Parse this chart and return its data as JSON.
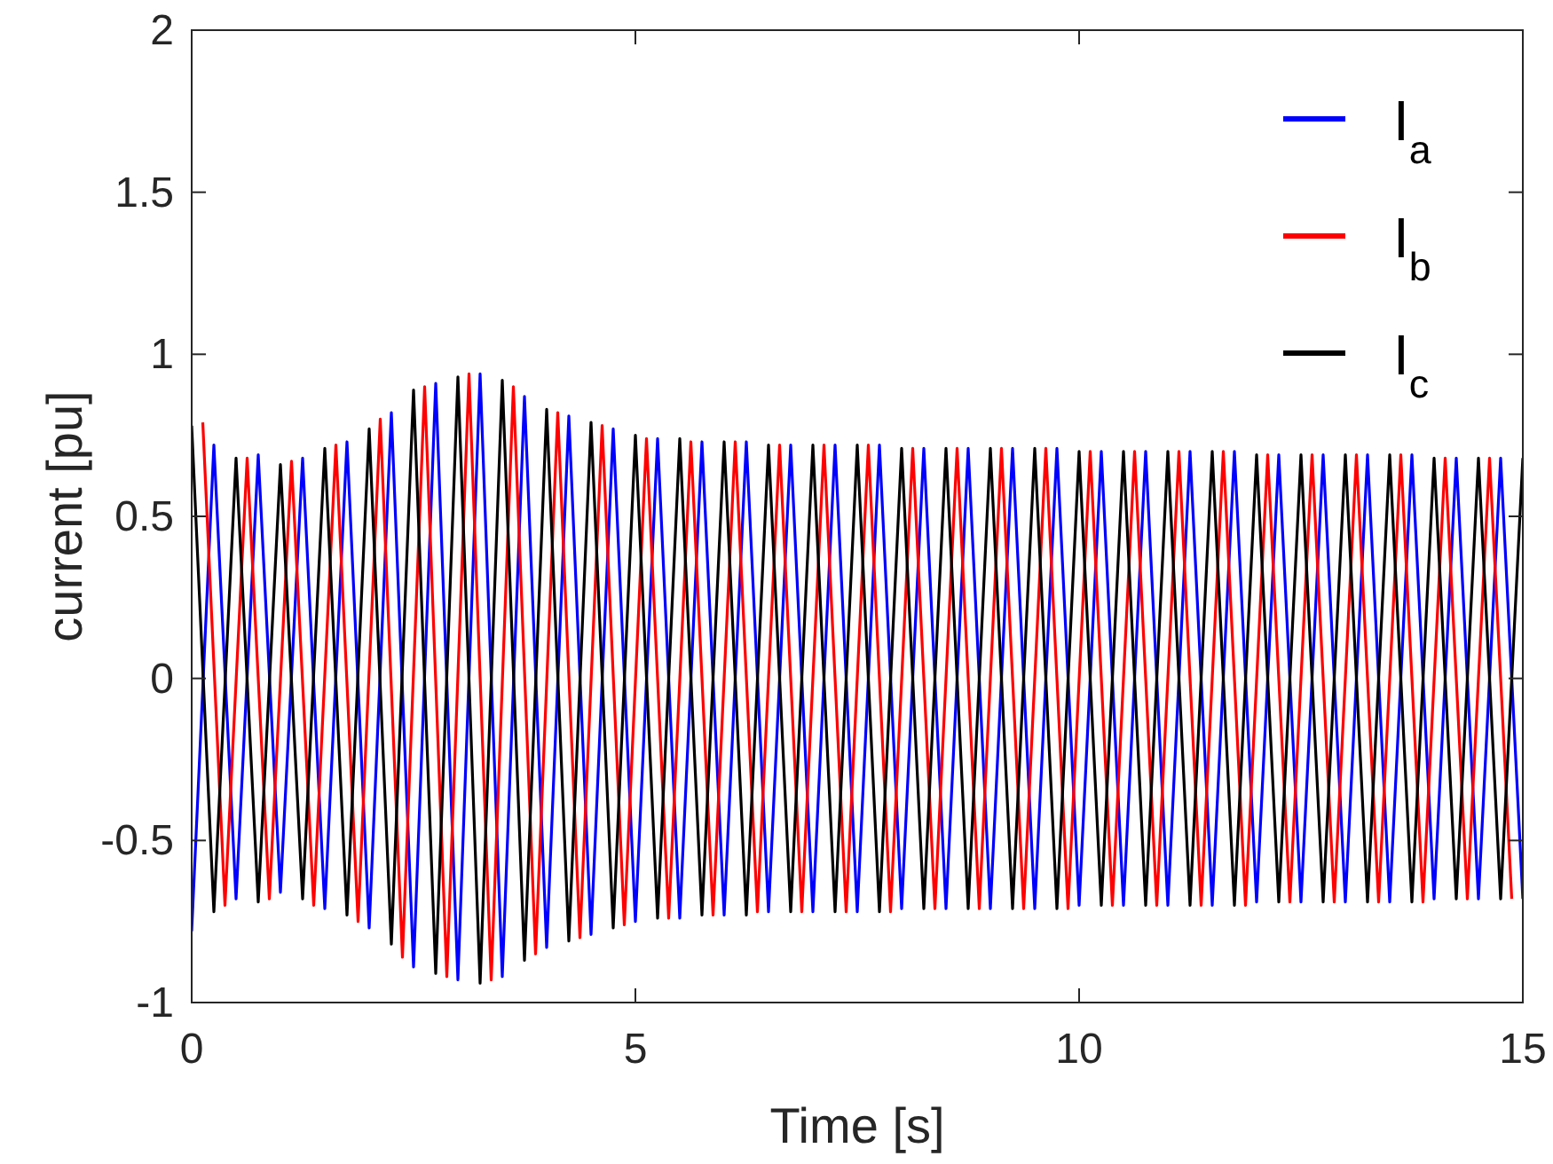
{
  "chart_data": {
    "type": "line",
    "xlabel": "Time [s]",
    "ylabel": "current [pu]",
    "xlim": [
      0,
      15
    ],
    "xticks": [
      0,
      5,
      10,
      15
    ],
    "ylim": [
      -1,
      2
    ],
    "yticks": [
      -1,
      -0.5,
      0,
      0.5,
      1,
      1.5,
      2
    ],
    "legend": "top right",
    "grid": false,
    "line_style": "solid",
    "marker": "none",
    "x": [
      0,
      0.25,
      0.5,
      0.75,
      1,
      1.25,
      1.5,
      1.75,
      2,
      2.25,
      2.5,
      2.75,
      3,
      3.25,
      3.5,
      3.75,
      4,
      4.25,
      4.5,
      4.75,
      5,
      5.25,
      5.5,
      5.75,
      6,
      6.25,
      6.5,
      6.75,
      7,
      7.25,
      7.5,
      7.75,
      8,
      8.25,
      8.5,
      8.75,
      9,
      9.25,
      9.5,
      9.75,
      10,
      10.25,
      10.5,
      10.75,
      11,
      11.25,
      11.5,
      11.75,
      12,
      12.25,
      12.5,
      12.75,
      13,
      13.25,
      13.5,
      13.75,
      14,
      14.25,
      14.5,
      14.75,
      15
    ],
    "series": [
      {
        "name": "I$_{a}$",
        "color": "#0000ff",
        "values": [
          -0.78,
          0.72,
          -0.68,
          0.69,
          -0.66,
          0.68,
          -0.71,
          0.73,
          -0.77,
          0.82,
          -0.89,
          0.91,
          -0.93,
          0.94,
          -0.92,
          0.87,
          -0.83,
          0.81,
          -0.79,
          0.77,
          -0.75,
          0.74,
          -0.74,
          0.73,
          -0.73,
          0.73,
          -0.72,
          0.72,
          -0.72,
          0.72,
          -0.72,
          0.72,
          -0.71,
          0.71,
          -0.71,
          0.71,
          -0.71,
          0.71,
          -0.71,
          0.71,
          -0.7,
          0.7,
          -0.7,
          0.7,
          -0.7,
          0.7,
          -0.7,
          0.7,
          -0.69,
          0.69,
          -0.69,
          0.69,
          -0.69,
          0.69,
          -0.69,
          0.69,
          -0.68,
          0.68,
          -0.68,
          0.68,
          -0.68
        ]
      },
      {
        "name": "I$_{b}$",
        "color": "#ff0000",
        "x": [
          0.125,
          0.375,
          0.625,
          0.875,
          1.125,
          1.375,
          1.625,
          1.875,
          2.125,
          2.375,
          2.625,
          2.875,
          3.125,
          3.375,
          3.625,
          3.875,
          4.125,
          4.375,
          4.625,
          4.875,
          5.125,
          5.375,
          5.625,
          5.875,
          6.125,
          6.375,
          6.625,
          6.875,
          7.125,
          7.375,
          7.625,
          7.875,
          8.125,
          8.375,
          8.625,
          8.875,
          9.125,
          9.375,
          9.625,
          9.875,
          10.125,
          10.375,
          10.625,
          10.875,
          11.125,
          11.375,
          11.625,
          11.875,
          12.125,
          12.375,
          12.625,
          12.875,
          13.125,
          13.375,
          13.625,
          13.875,
          14.125,
          14.375,
          14.625,
          14.875
        ],
        "values": [
          0.79,
          -0.7,
          0.68,
          -0.68,
          0.67,
          -0.7,
          0.72,
          -0.75,
          0.8,
          -0.86,
          0.9,
          -0.92,
          0.94,
          -0.93,
          0.9,
          -0.85,
          0.82,
          -0.8,
          0.78,
          -0.76,
          0.74,
          -0.74,
          0.73,
          -0.73,
          0.73,
          -0.72,
          0.72,
          -0.72,
          0.72,
          -0.72,
          0.72,
          -0.72,
          0.71,
          -0.71,
          0.71,
          -0.71,
          0.71,
          -0.71,
          0.71,
          -0.71,
          0.7,
          -0.7,
          0.7,
          -0.7,
          0.7,
          -0.7,
          0.7,
          -0.7,
          0.69,
          -0.69,
          0.69,
          -0.69,
          0.69,
          -0.69,
          0.69,
          -0.69,
          0.68,
          -0.68,
          0.68,
          -0.68
        ]
      },
      {
        "name": "I$_{c}$",
        "color": "#000000",
        "values": [
          0.78,
          -0.72,
          0.68,
          -0.69,
          0.66,
          -0.68,
          0.71,
          -0.73,
          0.77,
          -0.82,
          0.89,
          -0.91,
          0.93,
          -0.94,
          0.92,
          -0.87,
          0.83,
          -0.81,
          0.79,
          -0.77,
          0.75,
          -0.74,
          0.74,
          -0.73,
          0.73,
          -0.73,
          0.72,
          -0.72,
          0.72,
          -0.72,
          0.72,
          -0.72,
          0.71,
          -0.71,
          0.71,
          -0.71,
          0.71,
          -0.71,
          0.71,
          -0.71,
          0.7,
          -0.7,
          0.7,
          -0.7,
          0.7,
          -0.7,
          0.7,
          -0.7,
          0.69,
          -0.69,
          0.69,
          -0.69,
          0.69,
          -0.69,
          0.69,
          -0.69,
          0.68,
          -0.68,
          0.68,
          -0.68,
          0.68
        ]
      }
    ]
  }
}
